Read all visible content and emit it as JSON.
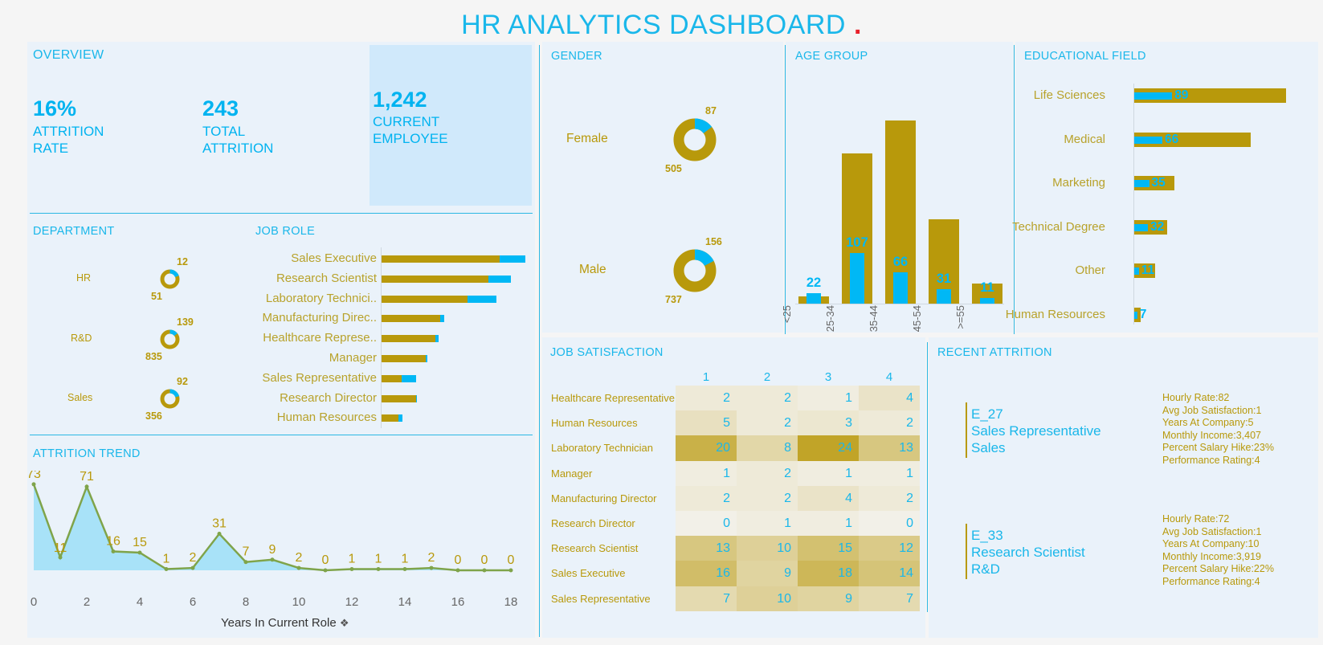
{
  "header": {
    "title": "HR ANALYTICS DASHBOARD",
    "dot": "."
  },
  "overview": {
    "title": "OVERVIEW",
    "kpis": [
      {
        "value": "16%",
        "label1": "ATTRITION",
        "label2": "RATE"
      },
      {
        "value": "243",
        "label1": "TOTAL",
        "label2": "ATTRITION"
      },
      {
        "value": "1,242",
        "label1": "CURRENT",
        "label2": "EMPLOYEE"
      }
    ]
  },
  "department": {
    "title": "DEPARTMENT",
    "items": [
      {
        "name": "HR",
        "attrition": 12,
        "current": 51
      },
      {
        "name": "R&D",
        "attrition": 139,
        "current": 835
      },
      {
        "name": "Sales",
        "attrition": 92,
        "current": 356
      }
    ]
  },
  "job_role": {
    "title": "JOB ROLE",
    "items": [
      {
        "label": "Sales Executive",
        "current": 147,
        "attrition": 32
      },
      {
        "label": "Research Scientist",
        "current": 133,
        "attrition": 28
      },
      {
        "label": "Laboratory Technici..",
        "current": 107,
        "attrition": 36
      },
      {
        "label": "Manufacturing Direc..",
        "current": 73,
        "attrition": 5
      },
      {
        "label": "Healthcare Represe..",
        "current": 67,
        "attrition": 4
      },
      {
        "label": "Manager",
        "current": 55,
        "attrition": 2
      },
      {
        "label": "Sales Representative",
        "current": 25,
        "attrition": 18
      },
      {
        "label": "Research Director",
        "current": 43,
        "attrition": 1
      },
      {
        "label": "Human Resources",
        "current": 21,
        "attrition": 5
      }
    ]
  },
  "attrition_trend": {
    "title": "ATTRITION TREND",
    "xlabel": "Years In Current Role",
    "x_ticks": [
      "0",
      "2",
      "4",
      "6",
      "8",
      "10",
      "12",
      "14",
      "16",
      "18"
    ],
    "points": [
      73,
      11,
      71,
      16,
      15,
      1,
      2,
      31,
      7,
      9,
      2,
      0,
      1,
      1,
      1,
      2,
      0,
      0,
      0
    ]
  },
  "gender": {
    "title": "GENDER",
    "items": [
      {
        "name": "Female",
        "attrition": 87,
        "current": 505
      },
      {
        "name": "Male",
        "attrition": 156,
        "current": 737
      }
    ]
  },
  "age_group": {
    "title": "AGE GROUP",
    "items": [
      {
        "label": "<25",
        "total": 26,
        "attrition": 22
      },
      {
        "label": "25-34",
        "total": 554,
        "attrition": 107
      },
      {
        "label": "35-44",
        "total": 675,
        "attrition": 66
      },
      {
        "label": "45-54",
        "total": 311,
        "attrition": 31
      },
      {
        "label": ">=55",
        "total": 74,
        "attrition": 11
      }
    ]
  },
  "edu_field": {
    "title": "EDUCATIONAL FIELD",
    "items": [
      {
        "label": "Life Sciences",
        "total": 606,
        "attrition": 89
      },
      {
        "label": "Medical",
        "total": 464,
        "attrition": 66
      },
      {
        "label": "Marketing",
        "total": 159,
        "attrition": 35
      },
      {
        "label": "Technical Degree",
        "total": 132,
        "attrition": 32
      },
      {
        "label": "Other",
        "total": 82,
        "attrition": 11
      },
      {
        "label": "Human Resources",
        "total": 27,
        "attrition": 7
      }
    ]
  },
  "job_satisfaction": {
    "title": "JOB SATISFACTION",
    "columns": [
      "1",
      "2",
      "3",
      "4"
    ],
    "rows": [
      {
        "role": "Healthcare Representative",
        "values": [
          2,
          2,
          1,
          4
        ]
      },
      {
        "role": "Human Resources",
        "values": [
          5,
          2,
          3,
          2
        ]
      },
      {
        "role": "Laboratory Technician",
        "values": [
          20,
          8,
          24,
          13
        ]
      },
      {
        "role": "Manager",
        "values": [
          1,
          2,
          1,
          1
        ]
      },
      {
        "role": "Manufacturing Director",
        "values": [
          2,
          2,
          4,
          2
        ]
      },
      {
        "role": "Research Director",
        "values": [
          0,
          1,
          1,
          0
        ]
      },
      {
        "role": "Research Scientist",
        "values": [
          13,
          10,
          15,
          12
        ]
      },
      {
        "role": "Sales Executive",
        "values": [
          16,
          9,
          18,
          14
        ]
      },
      {
        "role": "Sales Representative",
        "values": [
          7,
          10,
          9,
          7
        ]
      }
    ]
  },
  "recent_attrition": {
    "title": "RECENT ATTRITION",
    "items": [
      {
        "id": "E_27",
        "role": "Sales Representative",
        "dept": "Sales",
        "details": [
          "Hourly Rate:82",
          "Avg Job Satisfaction:1",
          "Years At Company:5",
          "Monthly Income:3,407",
          "Percent Salary Hike:23%",
          "Performance Rating:4"
        ]
      },
      {
        "id": "E_33",
        "role": "Research Scientist",
        "dept": "R&D",
        "details": [
          "Hourly Rate:72",
          "Avg Job Satisfaction:1",
          "Years At Company:10",
          "Monthly Income:3,919",
          "Percent Salary Hike:22%",
          "Performance Rating:4"
        ]
      }
    ]
  },
  "colors": {
    "gold": "#b8990b",
    "blue": "#1ab7ea",
    "bright_blue": "#00b8f5",
    "panel": "#eaf2fa",
    "highlight": "#d0e9fb"
  }
}
